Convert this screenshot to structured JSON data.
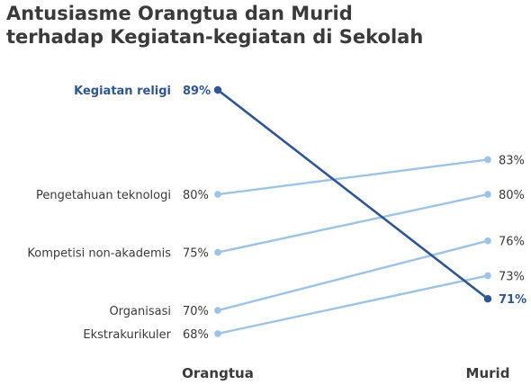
{
  "chart_data": {
    "type": "line",
    "subtype": "slope",
    "title": [
      "Antusiasme Orangtua dan Murid",
      "terhadap Kegiatan-kegiatan di Sekolah"
    ],
    "categories": [
      "Orangtua",
      "Murid"
    ],
    "value_suffix": "%",
    "highlight_color": "#2f5597",
    "base_color": "#9dc3e6",
    "series": [
      {
        "name": "Kegiatan religi",
        "values": [
          89,
          71
        ],
        "highlight": true
      },
      {
        "name": "Pengetahuan teknologi",
        "values": [
          80,
          83
        ],
        "highlight": false
      },
      {
        "name": "Kompetisi non-akademis",
        "values": [
          75,
          80
        ],
        "highlight": false
      },
      {
        "name": "Organisasi",
        "values": [
          70,
          76
        ],
        "highlight": false
      },
      {
        "name": "Ekstrakurikuler",
        "values": [
          68,
          73
        ],
        "highlight": false
      }
    ]
  }
}
